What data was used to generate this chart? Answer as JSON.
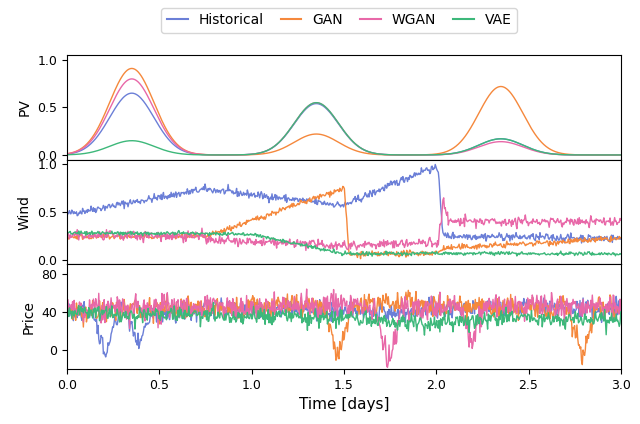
{
  "title": "",
  "xlabel": "Time [days]",
  "xlim": [
    0.0,
    3.0
  ],
  "xticks": [
    0.0,
    0.5,
    1.0,
    1.5,
    2.0,
    2.5,
    3.0
  ],
  "colors": {
    "Historical": "#6b7fd7",
    "GAN": "#f5883c",
    "WGAN": "#e868a8",
    "VAE": "#3db87a"
  },
  "legend_labels": [
    "Historical",
    "GAN",
    "WGAN",
    "VAE"
  ],
  "panels": [
    "PV",
    "Wind",
    "Price"
  ],
  "pv_ylim": [
    -0.05,
    1.05
  ],
  "wind_ylim": [
    -0.05,
    1.05
  ],
  "price_ylim": [
    -20,
    90
  ],
  "price_yticks": [
    0,
    40,
    80
  ],
  "seed": 42,
  "n_points": 720
}
